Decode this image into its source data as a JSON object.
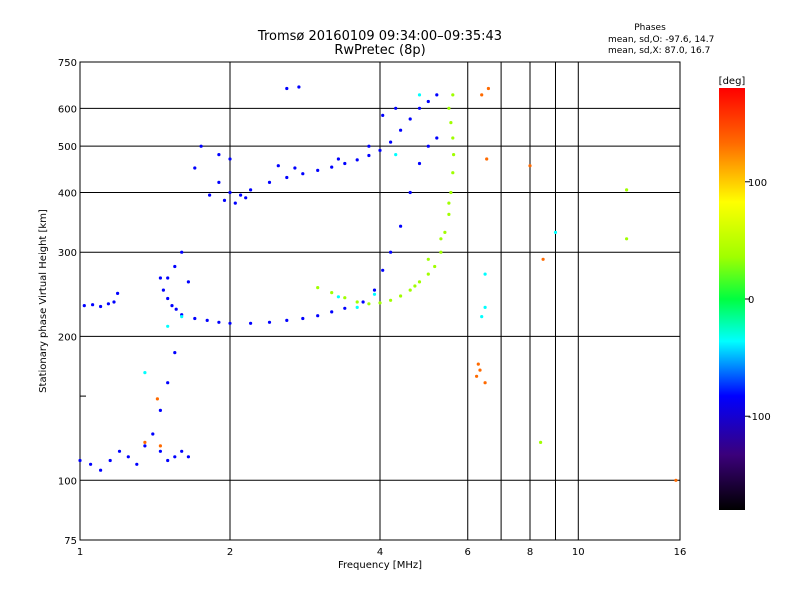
{
  "chart_data": {
    "type": "scatter",
    "title": "Tromsø 20160109 09:34:00–09:35:43",
    "subtitle": "RwPretec (8p)",
    "xlabel": "Frequency [MHz]",
    "ylabel": "Stationary phase Virtual Height [km]",
    "x_scale": "log",
    "y_scale": "log",
    "xlim": [
      1,
      16
    ],
    "ylim": [
      75,
      750
    ],
    "x_ticks": [
      1,
      2,
      4,
      6,
      8,
      10,
      16
    ],
    "x_ticks_unlabeled": [
      7,
      9
    ],
    "y_ticks": [
      75,
      100,
      200,
      300,
      400,
      500,
      600,
      750
    ],
    "y_ticks_unlabeled": [
      150
    ],
    "grid": true,
    "phase_stats": {
      "heading": "Phases",
      "line_o": "mean, sd,O: -97.6, 14.7",
      "line_x": "mean, sd,X:  87.0, 16.7"
    },
    "colorbar": {
      "label": "[deg]",
      "range": [
        -180,
        180
      ],
      "ticks": [
        100,
        0,
        -100
      ]
    },
    "series": [
      {
        "phase": -100,
        "points": [
          [
            1.02,
            232
          ],
          [
            1.06,
            233
          ],
          [
            1.1,
            231
          ],
          [
            1.14,
            234
          ],
          [
            1.17,
            236
          ],
          [
            1.19,
            246
          ],
          [
            1.45,
            265
          ],
          [
            1.47,
            250
          ],
          [
            1.5,
            240
          ],
          [
            1.53,
            232
          ],
          [
            1.56,
            228
          ],
          [
            1.6,
            222
          ],
          [
            1.7,
            218
          ],
          [
            1.8,
            216
          ],
          [
            1.9,
            214
          ],
          [
            2.0,
            213
          ],
          [
            2.2,
            213
          ],
          [
            2.4,
            214
          ],
          [
            2.6,
            216
          ],
          [
            2.8,
            218
          ],
          [
            3.0,
            221
          ],
          [
            3.2,
            225
          ],
          [
            3.4,
            229
          ],
          [
            3.7,
            236
          ],
          [
            3.9,
            250
          ],
          [
            4.05,
            275
          ],
          [
            4.2,
            300
          ],
          [
            4.4,
            340
          ],
          [
            4.6,
            400
          ],
          [
            4.8,
            460
          ],
          [
            5.0,
            500
          ],
          [
            5.2,
            520
          ],
          [
            1.7,
            450
          ],
          [
            1.9,
            420
          ],
          [
            2.0,
            400
          ],
          [
            2.1,
            395
          ],
          [
            2.2,
            405
          ],
          [
            2.4,
            420
          ],
          [
            2.6,
            430
          ],
          [
            2.8,
            438
          ],
          [
            3.0,
            445
          ],
          [
            3.2,
            452
          ],
          [
            3.4,
            460
          ],
          [
            3.6,
            468
          ],
          [
            3.8,
            478
          ],
          [
            4.0,
            490
          ],
          [
            4.2,
            510
          ],
          [
            4.4,
            540
          ],
          [
            4.6,
            570
          ],
          [
            4.8,
            600
          ],
          [
            5.0,
            620
          ],
          [
            5.2,
            640
          ],
          [
            1.82,
            395
          ],
          [
            1.95,
            385
          ],
          [
            2.05,
            380
          ],
          [
            2.15,
            390
          ],
          [
            1.75,
            500
          ],
          [
            1.9,
            480
          ],
          [
            2.0,
            470
          ],
          [
            2.5,
            455
          ],
          [
            2.7,
            450
          ],
          [
            3.3,
            470
          ],
          [
            3.8,
            500
          ],
          [
            4.05,
            580
          ],
          [
            4.3,
            600
          ],
          [
            1.0,
            110
          ],
          [
            1.05,
            108
          ],
          [
            1.1,
            105
          ],
          [
            1.15,
            110
          ],
          [
            1.2,
            115
          ],
          [
            1.25,
            112
          ],
          [
            1.3,
            108
          ],
          [
            1.35,
            118
          ],
          [
            1.4,
            125
          ],
          [
            1.45,
            140
          ],
          [
            1.5,
            160
          ],
          [
            1.55,
            185
          ],
          [
            1.45,
            115
          ],
          [
            1.5,
            110
          ],
          [
            1.55,
            112
          ],
          [
            1.6,
            115
          ],
          [
            1.65,
            112
          ],
          [
            1.5,
            265
          ],
          [
            1.55,
            280
          ],
          [
            1.6,
            300
          ],
          [
            1.65,
            260
          ],
          [
            2.6,
            660
          ],
          [
            2.75,
            665
          ]
        ]
      },
      {
        "phase": -60,
        "points": [
          [
            1.35,
            168
          ],
          [
            1.5,
            210
          ],
          [
            1.6,
            220
          ],
          [
            3.3,
            242
          ],
          [
            3.6,
            230
          ],
          [
            3.9,
            245
          ],
          [
            4.3,
            480
          ],
          [
            4.8,
            640
          ],
          [
            6.4,
            220
          ],
          [
            6.5,
            270
          ],
          [
            9.0,
            330
          ],
          [
            6.5,
            230
          ]
        ]
      },
      {
        "phase": 60,
        "points": [
          [
            3.0,
            253
          ],
          [
            3.2,
            247
          ],
          [
            3.4,
            241
          ],
          [
            3.6,
            236
          ],
          [
            3.8,
            234
          ],
          [
            4.0,
            235
          ],
          [
            4.2,
            238
          ],
          [
            4.4,
            243
          ],
          [
            4.6,
            250
          ],
          [
            4.8,
            260
          ],
          [
            5.0,
            270
          ],
          [
            5.15,
            280
          ],
          [
            5.3,
            300
          ],
          [
            5.4,
            330
          ],
          [
            5.5,
            360
          ],
          [
            5.55,
            400
          ],
          [
            5.6,
            440
          ],
          [
            5.62,
            480
          ],
          [
            5.6,
            520
          ],
          [
            5.55,
            560
          ],
          [
            5.5,
            600
          ],
          [
            5.6,
            640
          ],
          [
            4.7,
            255
          ],
          [
            5.0,
            290
          ],
          [
            5.3,
            320
          ],
          [
            5.5,
            380
          ],
          [
            12.5,
            405
          ],
          [
            12.5,
            320
          ],
          [
            8.4,
            120
          ]
        ]
      },
      {
        "phase": 120,
        "points": [
          [
            1.43,
            148
          ],
          [
            1.45,
            118
          ],
          [
            1.35,
            120
          ],
          [
            6.55,
            470
          ],
          [
            6.4,
            640
          ],
          [
            6.6,
            660
          ],
          [
            6.25,
            165
          ],
          [
            6.5,
            160
          ],
          [
            6.3,
            175
          ],
          [
            8.0,
            455
          ],
          [
            8.5,
            290
          ],
          [
            15.7,
            100
          ],
          [
            6.35,
            170
          ]
        ]
      }
    ]
  }
}
